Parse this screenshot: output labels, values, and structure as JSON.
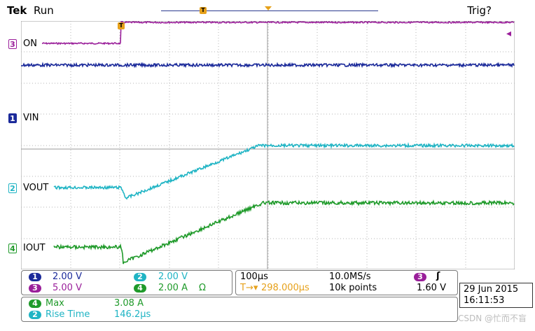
{
  "header": {
    "brand": "Tek",
    "acq_state": "Run",
    "trigger_state": "Trig?",
    "trigger_marker_glyph": "T",
    "colors": {
      "trigger_marker": "#e6a11b",
      "trigger_bar": "#2b3b8f"
    }
  },
  "channels": [
    {
      "num": "1",
      "label": "VIN",
      "color": "#1b2a9a"
    },
    {
      "num": "2",
      "label": "VOUT",
      "color": "#1fb4c4"
    },
    {
      "num": "3",
      "label": "ON",
      "color": "#9a1f9a"
    },
    {
      "num": "4",
      "label": "IOUT",
      "color": "#1f9a2a"
    }
  ],
  "settings_panel": {
    "ch1_scale": "2.00 V",
    "ch2_scale": "2.00 V",
    "ch3_scale": "5.00 V",
    "ch4_scale": "2.00 A",
    "ch4_unit_suffix": "Ω",
    "ch1_num": "1",
    "ch2_num": "2",
    "ch3_num": "3",
    "ch4_num": "4"
  },
  "timebase_panel": {
    "time_div": "100µs",
    "sample_rate": "10.0MS/s",
    "trigger_offset": "298.000µs",
    "record_length": "10k points",
    "trigger_source_num": "3",
    "trigger_slope_icon": "rising-edge-icon",
    "trigger_slope_glyph": "ʃ",
    "trigger_level": "1.60 V",
    "trigger_offset_prefix": "T→▾"
  },
  "measurements": [
    {
      "ch": "4",
      "name": "Max",
      "value": "3.08 A",
      "color": "#1f9a2a"
    },
    {
      "ch": "2",
      "name": "Rise Time",
      "value": "146.2µs",
      "color": "#1fb4c4"
    }
  ],
  "datetime": {
    "date": "29 Jun 2015",
    "time": "16:11:53"
  },
  "watermark": "CSDN @忙而不盲"
}
